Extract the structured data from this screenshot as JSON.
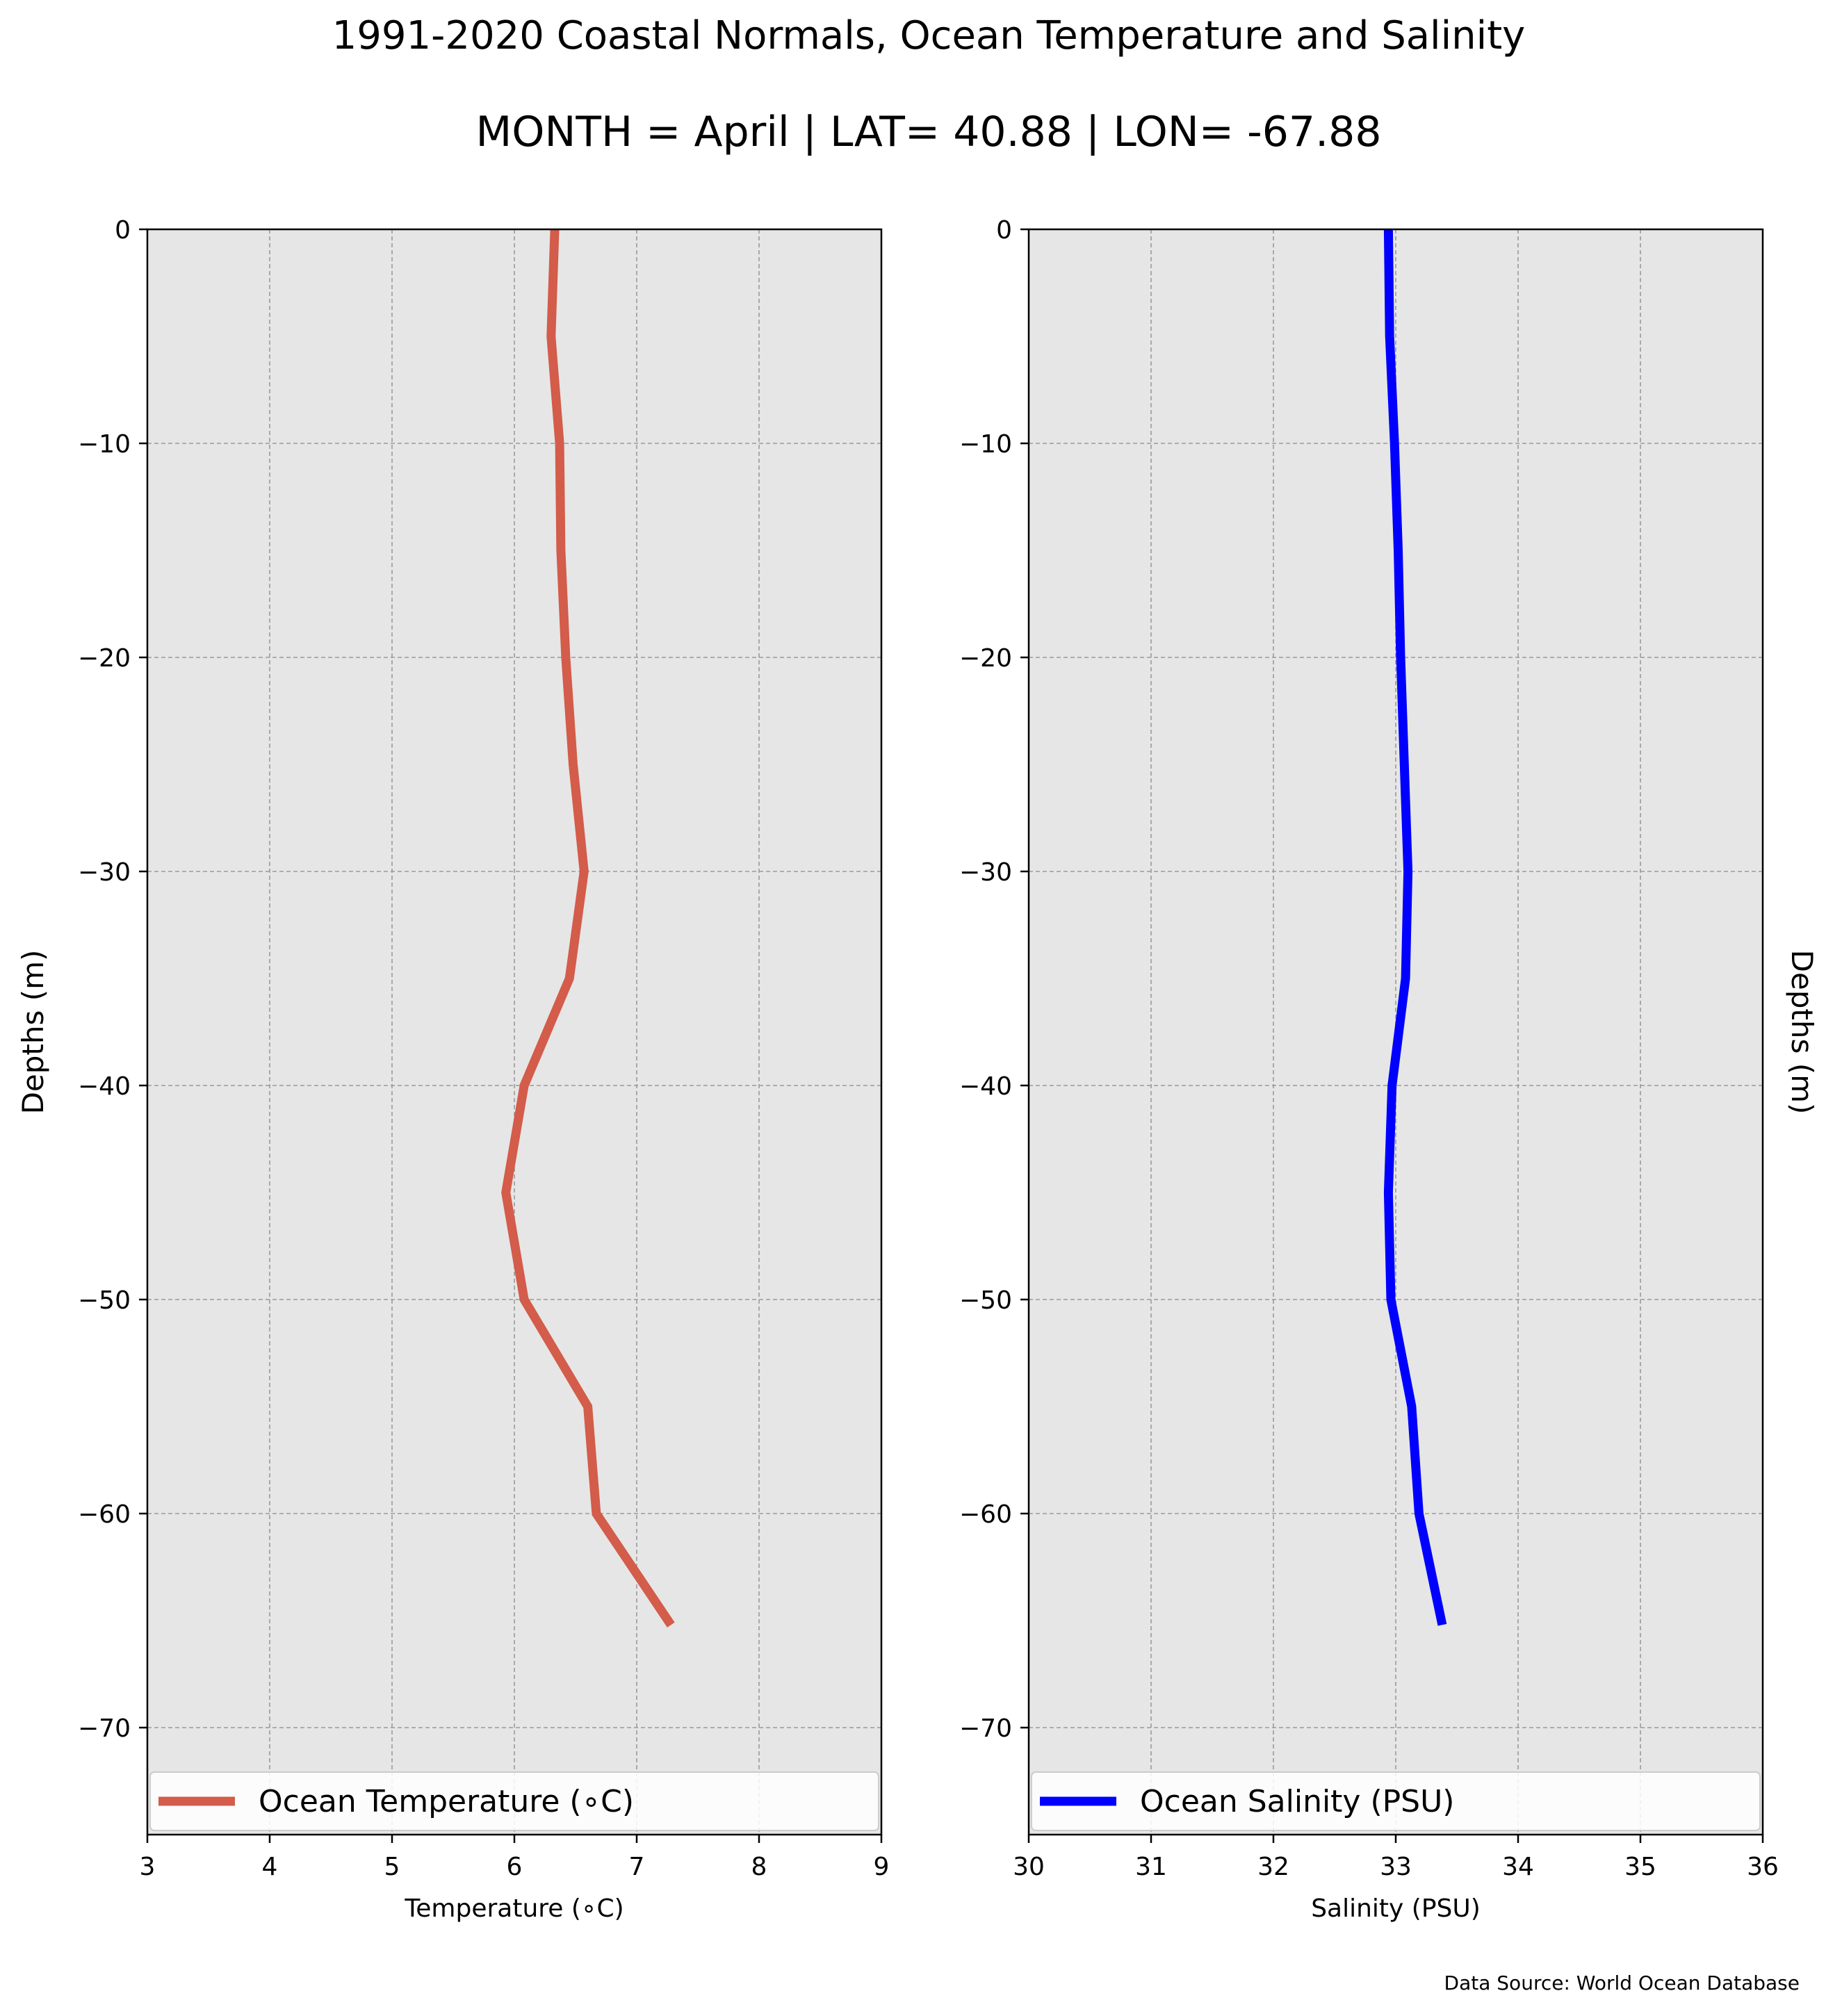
{
  "title": "1991-2020 Coastal Normals, Ocean Temperature and Salinity",
  "subtitle": "MONTH = April | LAT= 40.88 | LON= -67.88",
  "source": "Data Source: World Ocean Database",
  "chart_data": [
    {
      "type": "line",
      "xlabel": "Temperature (∘C)",
      "ylabel": "Depths (m)",
      "xlim": [
        3,
        9
      ],
      "ylim": [
        -75,
        0
      ],
      "xticks": [
        3,
        4,
        5,
        6,
        7,
        8,
        9
      ],
      "yticks": [
        0,
        -10,
        -20,
        -30,
        -40,
        -50,
        -60,
        -70
      ],
      "grid": true,
      "legend_position": "bottom",
      "series": [
        {
          "name": "Ocean Temperature (∘C)",
          "color": "#d35c4a",
          "x": [
            6.33,
            6.3,
            6.37,
            6.38,
            6.42,
            6.48,
            6.57,
            6.45,
            6.08,
            5.93,
            6.08,
            6.6,
            6.67,
            7.28
          ],
          "y": [
            0,
            -5,
            -10,
            -15,
            -20,
            -25,
            -30,
            -35,
            -40,
            -45,
            -50,
            -55,
            -60,
            -65.2
          ]
        }
      ]
    },
    {
      "type": "line",
      "xlabel": "Salinity (PSU)",
      "ylabel": "Depths (m)",
      "ylabel_side": "right",
      "xlim": [
        30,
        36
      ],
      "ylim": [
        -75,
        0
      ],
      "xticks": [
        30,
        31,
        32,
        33,
        34,
        35,
        36
      ],
      "yticks": [
        0,
        -10,
        -20,
        -30,
        -40,
        -50,
        -60,
        -70
      ],
      "grid": true,
      "legend_position": "bottom",
      "series": [
        {
          "name": "Ocean Salinity (PSU)",
          "color": "#0000ff",
          "x": [
            32.94,
            32.95,
            32.99,
            33.02,
            33.04,
            33.07,
            33.1,
            33.08,
            32.97,
            32.94,
            32.96,
            33.13,
            33.19,
            33.38
          ],
          "y": [
            0,
            -5,
            -10,
            -15,
            -20,
            -25,
            -30,
            -35,
            -40,
            -45,
            -50,
            -55,
            -60,
            -65.2
          ]
        }
      ]
    }
  ]
}
